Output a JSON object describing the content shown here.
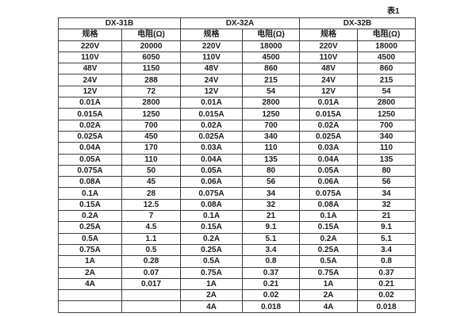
{
  "page": {
    "caption": "表1"
  },
  "table": {
    "groups": [
      {
        "name": "DX-31B",
        "col_headers": [
          "规格",
          "电阻(Ω)"
        ]
      },
      {
        "name": "DX-32A",
        "col_headers": [
          "规格",
          "电阻(Ω)"
        ]
      },
      {
        "name": "DX-32B",
        "col_headers": [
          "规格",
          "电阻(Ω)"
        ]
      }
    ],
    "rows": [
      [
        "220V",
        "20000",
        "220V",
        "18000",
        "220V",
        "18000"
      ],
      [
        "110V",
        "6050",
        "110V",
        "4500",
        "110V",
        "4500"
      ],
      [
        "48V",
        "1150",
        "48V",
        "860",
        "48V",
        "860"
      ],
      [
        "24V",
        "288",
        "24V",
        "215",
        "24V",
        "215"
      ],
      [
        "12V",
        "72",
        "12V",
        "54",
        "12V",
        "54"
      ],
      [
        "0.01A",
        "2800",
        "0.01A",
        "2800",
        "0.01A",
        "2800"
      ],
      [
        "0.015A",
        "1250",
        "0.015A",
        "1250",
        "0.015A",
        "1250"
      ],
      [
        "0.02A",
        "700",
        "0.02A",
        "700",
        "0.02A",
        "700"
      ],
      [
        "0.025A",
        "450",
        "0.025A",
        "340",
        "0.025A",
        "340"
      ],
      [
        "0.04A",
        "170",
        "0.03A",
        "110",
        "0.03A",
        "110"
      ],
      [
        "0.05A",
        "110",
        "0.04A",
        "135",
        "0.04A",
        "135"
      ],
      [
        "0.075A",
        "50",
        "0.05A",
        "80",
        "0.05A",
        "80"
      ],
      [
        "0.08A",
        "45",
        "0.06A",
        "56",
        "0.06A",
        "56"
      ],
      [
        "0.1A",
        "28",
        "0.075A",
        "34",
        "0.075A",
        "34"
      ],
      [
        "0.15A",
        "12.5",
        "0.08A",
        "32",
        "0.08A",
        "32"
      ],
      [
        "0.2A",
        "7",
        "0.1A",
        "21",
        "0.1A",
        "21"
      ],
      [
        "0.25A",
        "4.5",
        "0.15A",
        "9.1",
        "0.15A",
        "9.1"
      ],
      [
        "0.5A",
        "1.1",
        "0.2A",
        "5.1",
        "0.2A",
        "5.1"
      ],
      [
        "0.75A",
        "0.5",
        "0.25A",
        "3.4",
        "0.25A",
        "3.4"
      ],
      [
        "1A",
        "0.28",
        "0.5A",
        "0.8",
        "0.5A",
        "0.8"
      ],
      [
        "2A",
        "0.07",
        "0.75A",
        "0.37",
        "0.75A",
        "0.37"
      ],
      [
        "4A",
        "0.017",
        "1A",
        "0.21",
        "1A",
        "0.21"
      ],
      [
        "",
        "",
        "2A",
        "0.02",
        "2A",
        "0.02"
      ],
      [
        "",
        "",
        "4A",
        "0.018",
        "4A",
        "0.018"
      ]
    ]
  }
}
